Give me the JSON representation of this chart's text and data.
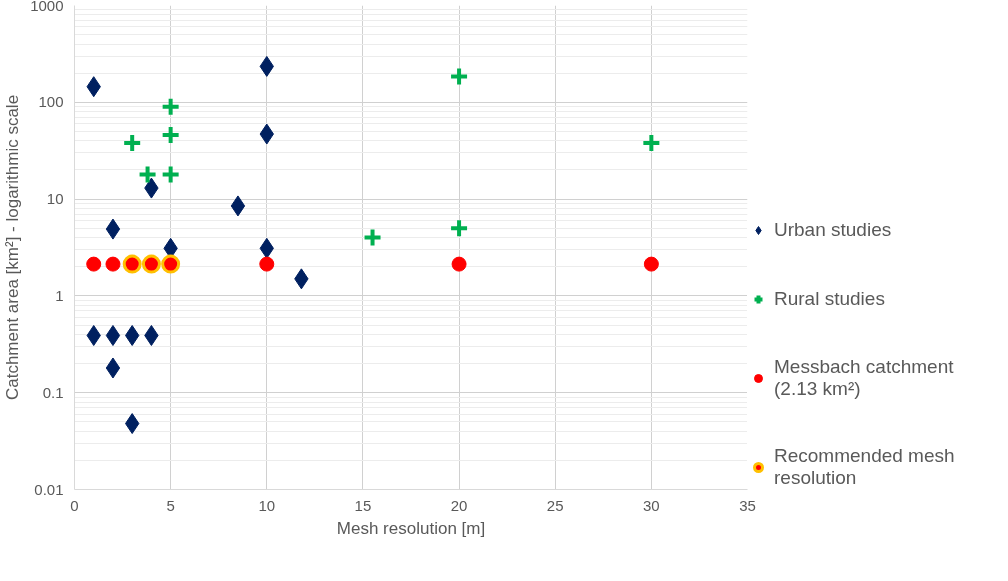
{
  "chart_data": {
    "type": "scatter",
    "xlabel": "Mesh resolution [m]",
    "ylabel": "Catchment area [km²] - logarithmic scale",
    "log": "y",
    "grid": true,
    "legend": "right",
    "xlim": [
      0,
      35
    ],
    "xticks": [
      0,
      5,
      10,
      15,
      20,
      25,
      30,
      35
    ],
    "ylim": [
      0.01,
      1000
    ],
    "yticks": [
      0.01,
      0.1,
      1,
      10,
      100,
      1000
    ],
    "series": [
      {
        "name": "Urban studies",
        "color": "#002060",
        "marker": "diamond",
        "x": [
          1,
          10,
          10,
          4,
          8.5,
          2,
          5,
          10,
          11.8,
          1,
          2,
          3,
          4,
          2,
          3
        ],
        "values": [
          145,
          235,
          47,
          13,
          8.5,
          4.9,
          3.1,
          3.1,
          1.5,
          0.39,
          0.39,
          0.39,
          0.39,
          0.18,
          0.048
        ]
      },
      {
        "name": "Rural studies",
        "color": "#00b050",
        "marker": "cross",
        "x": [
          3,
          3.8,
          5,
          5,
          5,
          20,
          30,
          15.5,
          20
        ],
        "values": [
          38,
          18,
          90,
          46,
          18,
          185,
          38,
          4,
          5
        ]
      },
      {
        "name": "Messbach catchment\n(2.13 km²)",
        "color": "#ff0000",
        "marker": "circle",
        "x": [
          1,
          2,
          10,
          20,
          30
        ],
        "values": [
          2.13,
          2.13,
          2.13,
          2.13,
          2.13
        ]
      },
      {
        "name": "Recommended mesh\nresolution",
        "color": "#ffc000",
        "marker": "circle",
        "x": [
          3,
          4,
          5
        ],
        "values": [
          2.13,
          2.13,
          2.13
        ]
      }
    ]
  }
}
